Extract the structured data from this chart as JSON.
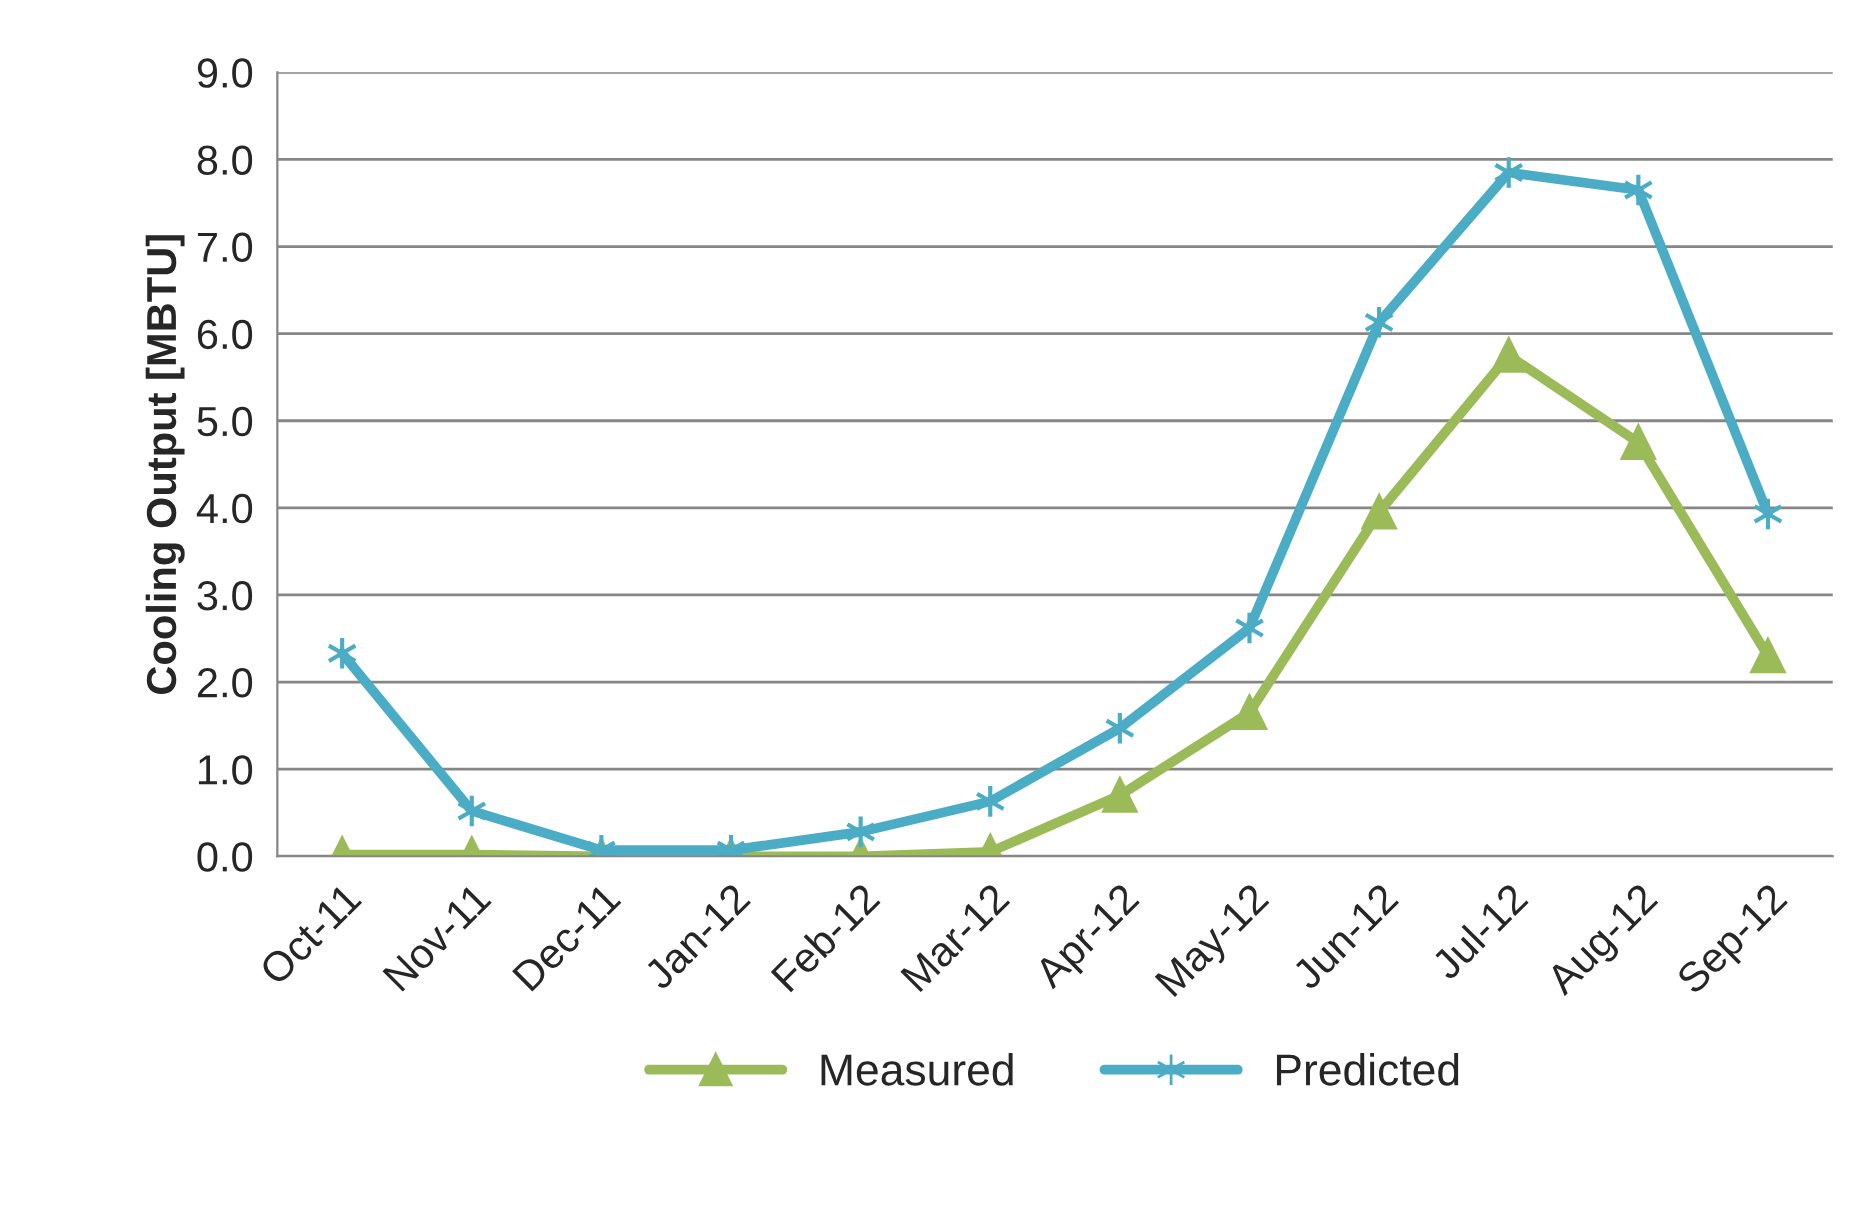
{
  "chart_data": {
    "type": "line",
    "ylabel": "Cooling Output [MBTU]",
    "categories": [
      "Oct-11",
      "Nov-11",
      "Dec-11",
      "Jan-12",
      "Feb-12",
      "Mar-12",
      "Apr-12",
      "May-12",
      "Jun-12",
      "Jul-12",
      "Aug-12",
      "Sep-12"
    ],
    "series": [
      {
        "name": "Measured",
        "color": "#9bbb59",
        "marker": "triangle",
        "values": [
          0.02,
          0.02,
          0.0,
          0.0,
          0.0,
          0.05,
          0.7,
          1.65,
          3.95,
          5.75,
          4.75,
          2.3
        ]
      },
      {
        "name": "Predicted",
        "color": "#4bacc6",
        "marker": "cross",
        "values": [
          2.33,
          0.52,
          0.07,
          0.07,
          0.28,
          0.63,
          1.47,
          2.62,
          6.13,
          7.85,
          7.65,
          3.93
        ]
      }
    ],
    "ylim": [
      0,
      9
    ],
    "yticks": [
      {
        "value": 0,
        "label": "0.0"
      },
      {
        "value": 1,
        "label": "1.0"
      },
      {
        "value": 2,
        "label": "2.0"
      },
      {
        "value": 3,
        "label": "3.0"
      },
      {
        "value": 4,
        "label": "4.0"
      },
      {
        "value": 5,
        "label": "5.0"
      },
      {
        "value": 6,
        "label": "6.0"
      },
      {
        "value": 7,
        "label": "7.0"
      },
      {
        "value": 8,
        "label": "8.0"
      },
      {
        "value": 9,
        "label": "9.0"
      }
    ],
    "grid": "y",
    "legend": "bottom",
    "line_style": "solid"
  }
}
